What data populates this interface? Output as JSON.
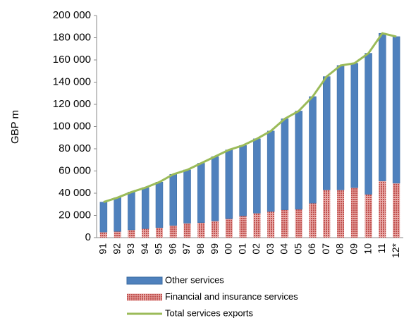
{
  "chart_data": {
    "type": "bar",
    "stacked": true,
    "y_label": "GBP m",
    "categories": [
      "91",
      "92",
      "93",
      "94",
      "95",
      "96",
      "97",
      "98",
      "99",
      "00",
      "01",
      "02",
      "03",
      "04",
      "05",
      "06",
      "07",
      "08",
      "09",
      "10",
      "11",
      "12*"
    ],
    "series": [
      {
        "name": "Other services",
        "color": "#4f81bd",
        "values": [
          27000,
          30500,
          34000,
          37000,
          41000,
          46000,
          48000,
          53500,
          58000,
          62000,
          63500,
          67000,
          72500,
          82000,
          88500,
          96000,
          102000,
          112000,
          112000,
          127000,
          133000,
          132000
        ]
      },
      {
        "name": "Financial and insurance services",
        "color": "#c0504d",
        "values": [
          5000,
          5500,
          7000,
          8000,
          9000,
          11000,
          13000,
          13500,
          15000,
          17000,
          19500,
          22000,
          23500,
          25000,
          25500,
          31000,
          43000,
          43000,
          45000,
          39000,
          51000,
          49000
        ]
      },
      {
        "name": "Total services exports",
        "color": "#9bbb59",
        "type": "line",
        "values": [
          32000,
          36000,
          41000,
          45000,
          50000,
          57000,
          61000,
          67000,
          73000,
          79000,
          83000,
          89000,
          96000,
          107000,
          114000,
          127000,
          145000,
          155000,
          157000,
          166000,
          184000,
          181000
        ]
      }
    ],
    "ylim": [
      0,
      200000
    ],
    "yticks": [
      0,
      {
        "value": 20000,
        "label": "20 000"
      },
      {
        "value": 40000,
        "label": "40 000"
      },
      {
        "value": 60000,
        "label": "60 000"
      },
      {
        "value": 80000,
        "label": "80 000"
      },
      {
        "value": 100000,
        "label": "100 000"
      },
      {
        "value": 120000,
        "label": "120 000"
      },
      {
        "value": 140000,
        "label": "140 000"
      },
      {
        "value": 160000,
        "label": "160 000"
      },
      {
        "value": 180000,
        "label": "180 000"
      },
      {
        "value": 200000,
        "label": "200 000"
      }
    ],
    "grid": false
  }
}
